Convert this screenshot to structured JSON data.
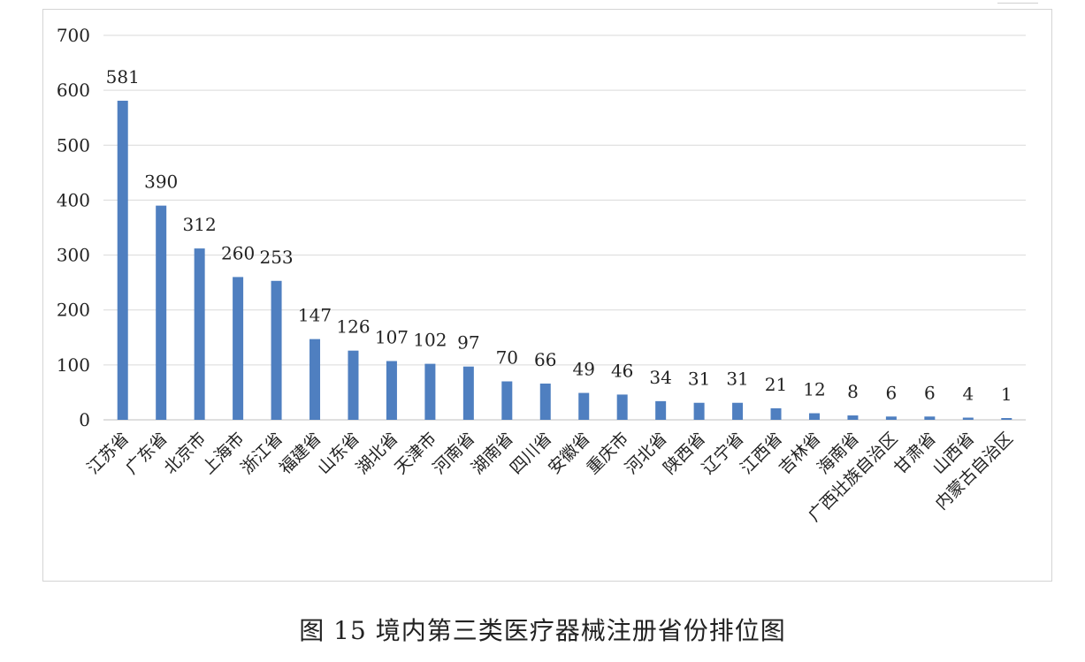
{
  "chart_data": {
    "type": "bar",
    "categories": [
      "江苏省",
      "广东省",
      "北京市",
      "上海市",
      "浙江省",
      "福建省",
      "山东省",
      "湖北省",
      "天津市",
      "河南省",
      "湖南省",
      "四川省",
      "安徽省",
      "重庆市",
      "河北省",
      "陕西省",
      "辽宁省",
      "江西省",
      "吉林省",
      "海南省",
      "广西壮族自治区",
      "甘肃省",
      "山西省",
      "内蒙古自治区"
    ],
    "values": [
      581,
      390,
      312,
      260,
      253,
      147,
      126,
      107,
      102,
      97,
      70,
      66,
      49,
      46,
      34,
      31,
      31,
      21,
      12,
      8,
      6,
      6,
      4,
      1
    ],
    "y_ticks": [
      0,
      100,
      200,
      300,
      400,
      500,
      600,
      700
    ],
    "ylim": [
      0,
      700
    ],
    "grid": true,
    "bar_color": "#4f7fc0",
    "data_labels": true
  },
  "caption": "图 15  境内第三类医疗器械注册省份排位图"
}
